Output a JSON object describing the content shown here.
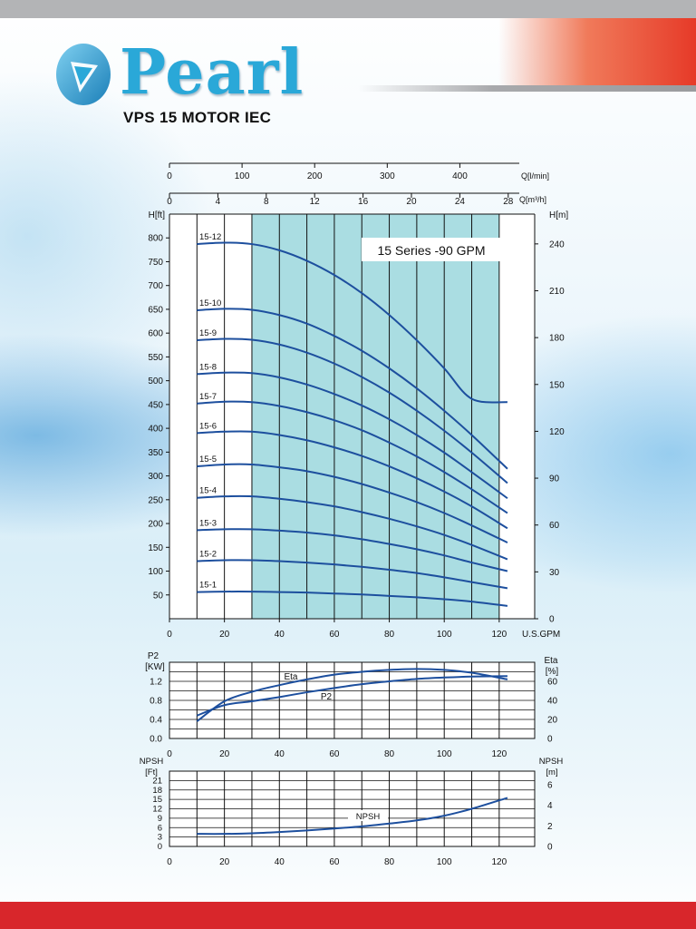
{
  "brand": {
    "name": "Pearl",
    "subtitle": "VPS 15 MOTOR IEC",
    "colors": {
      "logo": "#2aa8d8",
      "accent_red": "#d8262b",
      "curve": "#1d4f9e",
      "band": "#aadde2"
    }
  },
  "chart_data": [
    {
      "type": "line",
      "title": "15 Series -90 GPM",
      "xlabel": "U.S.GPM",
      "ylabel": "H[ft]",
      "ylabel_right": "H[m]",
      "xlabel_top_1": "Q[l/min]",
      "xlabel_top_2": "Q[m³/h]",
      "xlim": [
        0,
        125
      ],
      "ylim": [
        0,
        850
      ],
      "xticks": [
        0,
        20,
        40,
        60,
        80,
        100,
        120
      ],
      "yticks": [
        50,
        100,
        150,
        200,
        250,
        300,
        350,
        400,
        450,
        500,
        550,
        600,
        650,
        700,
        750,
        800
      ],
      "yticks_right": [
        0,
        30,
        60,
        90,
        120,
        150,
        180,
        210,
        240
      ],
      "xticks_top_1": [
        0,
        100,
        200,
        300,
        400
      ],
      "xticks_top_2": [
        0,
        4,
        8,
        12,
        16,
        20,
        24,
        28
      ],
      "recommended_range": [
        30,
        120
      ],
      "x": [
        10,
        20,
        30,
        40,
        50,
        60,
        70,
        80,
        90,
        100,
        110,
        123
      ],
      "series": [
        {
          "name": "15-1",
          "values": [
            56,
            57,
            57,
            56,
            55,
            53,
            51,
            48,
            45,
            41,
            36,
            27
          ]
        },
        {
          "name": "15-2",
          "values": [
            121,
            123,
            123,
            121,
            118,
            114,
            109,
            103,
            96,
            87,
            77,
            64
          ]
        },
        {
          "name": "15-3",
          "values": [
            186,
            188,
            188,
            185,
            181,
            175,
            167,
            157,
            146,
            133,
            118,
            100
          ]
        },
        {
          "name": "15-4",
          "values": [
            254,
            257,
            257,
            252,
            245,
            236,
            224,
            210,
            194,
            176,
            155,
            125
          ]
        },
        {
          "name": "15-5",
          "values": [
            320,
            324,
            324,
            318,
            310,
            298,
            283,
            265,
            245,
            222,
            196,
            160
          ]
        },
        {
          "name": "15-6",
          "values": [
            390,
            393,
            393,
            386,
            375,
            360,
            342,
            320,
            295,
            267,
            236,
            190
          ]
        },
        {
          "name": "15-7",
          "values": [
            452,
            456,
            455,
            447,
            434,
            417,
            396,
            370,
            341,
            308,
            272,
            222
          ]
        },
        {
          "name": "15-8",
          "values": [
            514,
            517,
            516,
            507,
            492,
            472,
            448,
            419,
            386,
            349,
            308,
            253
          ]
        },
        {
          "name": "15-9",
          "values": [
            585,
            588,
            586,
            576,
            559,
            536,
            508,
            475,
            437,
            395,
            349,
            285
          ]
        },
        {
          "name": "15-10",
          "values": [
            648,
            651,
            649,
            638,
            620,
            594,
            563,
            526,
            484,
            437,
            386,
            315
          ]
        },
        {
          "name": "15-12",
          "values": [
            787,
            790,
            787,
            774,
            752,
            722,
            684,
            638,
            585,
            526,
            462,
            455
          ]
        }
      ]
    },
    {
      "type": "line",
      "ylabel": "P2 [KW]",
      "ylabel_right": "Eta [%]",
      "xlim": [
        0,
        125
      ],
      "ylim": [
        0,
        1.6
      ],
      "xticks": [
        0,
        20,
        40,
        60,
        80,
        100,
        120
      ],
      "yticks": [
        0.0,
        0.4,
        0.8,
        1.2
      ],
      "yticks_right": [
        0,
        20,
        40,
        60
      ],
      "x": [
        10,
        20,
        30,
        40,
        50,
        60,
        70,
        80,
        90,
        100,
        110,
        123
      ],
      "series": [
        {
          "name": "P2",
          "values": [
            0.48,
            0.7,
            0.78,
            0.87,
            0.97,
            1.06,
            1.14,
            1.2,
            1.25,
            1.28,
            1.3,
            1.31
          ]
        },
        {
          "name": "Eta",
          "values": [
            18,
            39,
            49,
            56,
            62,
            67,
            70,
            72,
            73,
            72,
            69,
            62
          ]
        }
      ]
    },
    {
      "type": "line",
      "ylabel": "NPSH [Ft]",
      "ylabel_right": "NPSH [m]",
      "xlim": [
        0,
        125
      ],
      "ylim": [
        0,
        24
      ],
      "xticks": [
        0,
        20,
        40,
        60,
        80,
        100,
        120
      ],
      "yticks": [
        0,
        3,
        6,
        9,
        12,
        15,
        18,
        21
      ],
      "yticks_right": [
        0,
        2,
        4,
        6
      ],
      "x": [
        10,
        20,
        30,
        40,
        50,
        60,
        70,
        80,
        90,
        100,
        110,
        123
      ],
      "series": [
        {
          "name": "NPSH",
          "values": [
            4.0,
            4.0,
            4.2,
            4.6,
            5.1,
            5.7,
            6.4,
            7.3,
            8.3,
            9.8,
            12.0,
            15.5
          ]
        }
      ]
    }
  ]
}
